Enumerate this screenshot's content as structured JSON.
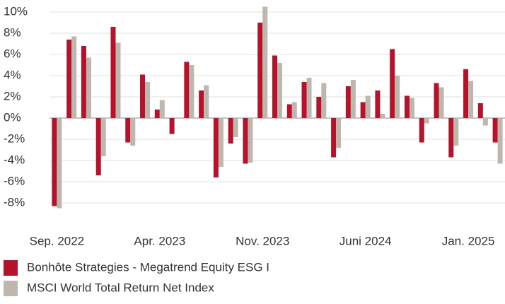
{
  "chart_data": {
    "type": "bar",
    "categories": [
      "Sep. 2022",
      null,
      null,
      null,
      null,
      null,
      null,
      "Apr. 2023",
      null,
      null,
      null,
      null,
      null,
      null,
      "Nov. 2023",
      null,
      null,
      null,
      null,
      null,
      null,
      "Juni 2024",
      null,
      null,
      null,
      null,
      null,
      null,
      "Jan. 2025",
      null,
      null
    ],
    "series": [
      {
        "name": "Bonhôte Strategies - Megatrend Equity ESG I",
        "color": "#b5122b",
        "values": [
          -8.3,
          7.4,
          6.8,
          -5.4,
          8.6,
          -2.3,
          4.1,
          0.8,
          -1.5,
          5.3,
          2.6,
          -5.6,
          -2.4,
          -4.3,
          9.0,
          5.9,
          1.3,
          3.4,
          2.0,
          -3.7,
          3.0,
          1.5,
          2.6,
          6.5,
          2.1,
          -2.3,
          3.3,
          -3.7,
          4.6,
          1.4,
          -2.3
        ]
      },
      {
        "name": "MSCI World Total Return Net Index",
        "color": "#bfb7ae",
        "values": [
          -8.5,
          7.7,
          5.7,
          -3.6,
          7.1,
          -2.6,
          3.4,
          1.7,
          0,
          5.0,
          3.1,
          -4.6,
          -1.8,
          -4.2,
          10.5,
          5.2,
          1.5,
          3.8,
          3.3,
          -2.8,
          3.6,
          2.1,
          0.4,
          4.0,
          1.9,
          -0.5,
          2.9,
          -2.6,
          3.5,
          -0.7,
          -4.3
        ]
      }
    ],
    "ylim": [
      -9,
      10.8
    ],
    "yticks": [
      {
        "value": -8,
        "label": "-8%"
      },
      {
        "value": -6,
        "label": "-6%"
      },
      {
        "value": -4,
        "label": "-4%"
      },
      {
        "value": -2,
        "label": "-2%"
      },
      {
        "value": 0,
        "label": "0%"
      },
      {
        "value": 2,
        "label": "2%"
      },
      {
        "value": 4,
        "label": "4%"
      },
      {
        "value": 6,
        "label": "6%"
      },
      {
        "value": 8,
        "label": "8%"
      },
      {
        "value": 10,
        "label": "10%"
      }
    ],
    "grid": true,
    "legend": "bottom"
  }
}
